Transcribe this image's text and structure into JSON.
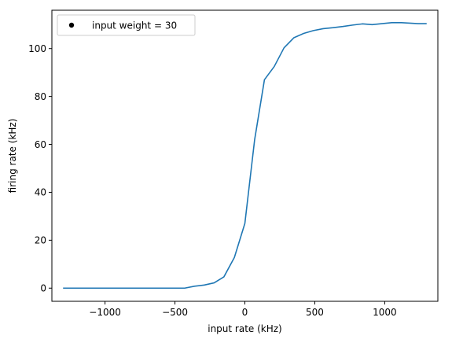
{
  "chart_data": {
    "type": "line",
    "title": "",
    "xlabel": "input rate (kHz)",
    "ylabel": "firing rate (kHz)",
    "xlim": [
      -1380,
      1380
    ],
    "ylim": [
      -5.5,
      116
    ],
    "xticks": [
      -1000,
      -500,
      0,
      500,
      1000
    ],
    "xtick_labels": [
      "−1000",
      "−500",
      "0",
      "500",
      "1000"
    ],
    "yticks": [
      0,
      20,
      40,
      60,
      80,
      100
    ],
    "ytick_labels": [
      "0",
      "20",
      "40",
      "60",
      "80",
      "100"
    ],
    "grid": false,
    "legend": {
      "location": "top-left",
      "entries": [
        {
          "label": "input weight = 30",
          "marker": "dot",
          "color": "#000000"
        }
      ]
    },
    "series": [
      {
        "color": "#1f77b4",
        "x": [
          -1300,
          -1230,
          -1160,
          -1090,
          -1020,
          -950,
          -880,
          -810,
          -740,
          -670,
          -600,
          -530,
          -460,
          -430,
          -360,
          -290,
          -220,
          -150,
          -75,
          0,
          70,
          140,
          210,
          280,
          350,
          420,
          490,
          560,
          630,
          700,
          770,
          840,
          910,
          980,
          1050,
          1120,
          1180,
          1240,
          1300
        ],
        "y": [
          0,
          0,
          0,
          0,
          0,
          0,
          0,
          0,
          0,
          0,
          0,
          0,
          0,
          0,
          0.8,
          1.3,
          2.2,
          4.7,
          12.8,
          27,
          62,
          87,
          92.5,
          100.3,
          104.5,
          106.3,
          107.5,
          108.3,
          108.7,
          109.2,
          109.8,
          110.3,
          110,
          110.4,
          110.8,
          110.8,
          110.6,
          110.4,
          110.4
        ]
      }
    ]
  }
}
